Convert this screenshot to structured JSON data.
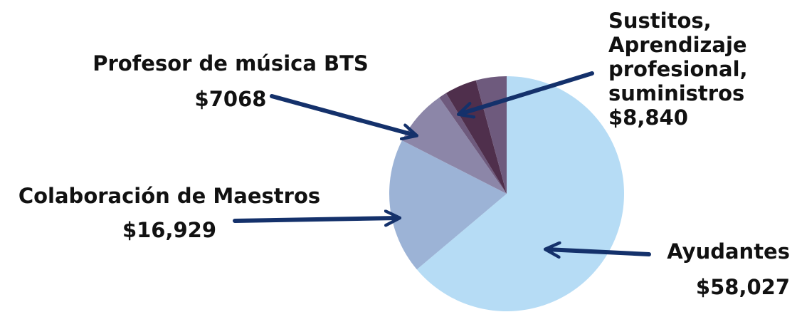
{
  "chart_data": {
    "type": "pie",
    "start": "12 o'clock",
    "direction": "clockwise",
    "slices": [
      {
        "key": "ayudantes",
        "label": "Ayudantes",
        "value_label": "$58,027",
        "value": 58027,
        "color": "#b6dcf5"
      },
      {
        "key": "colaboracion",
        "label": "Colaboración de Maestros",
        "value_label": "$16,929",
        "value": 16929,
        "color": "#9cb3d6"
      },
      {
        "key": "profesor",
        "label": "Profesor de música BTS",
        "value_label": "$7068",
        "value": 7068,
        "color": "#8c86a8"
      },
      {
        "key": "sustitos",
        "label": "Sustitos, Aprendizaje profesional, suministros",
        "value_label": "$8,840",
        "value": 8840,
        "color": "#4f2f4c",
        "sub_slices": [
          {
            "value": 1000,
            "color": "#6e5a7d"
          },
          {
            "value": 4000,
            "color": "#4f2f4c"
          },
          {
            "value": 3840,
            "color": "#6e5a7d"
          }
        ]
      }
    ],
    "arrow_color": "#14316b"
  },
  "labels": {
    "profesor": {
      "name": "Profesor de música BTS",
      "value": "$7068"
    },
    "sustitos": {
      "line1": "Sustitos,",
      "line2": "Aprendizaje",
      "line3": "profesional,",
      "line4": "suministros",
      "value": "$8,840"
    },
    "colaboracion": {
      "name": "Colaboración de Maestros",
      "value": "$16,929"
    },
    "ayudantes": {
      "name": "Ayudantes",
      "value": "$58,027"
    }
  }
}
